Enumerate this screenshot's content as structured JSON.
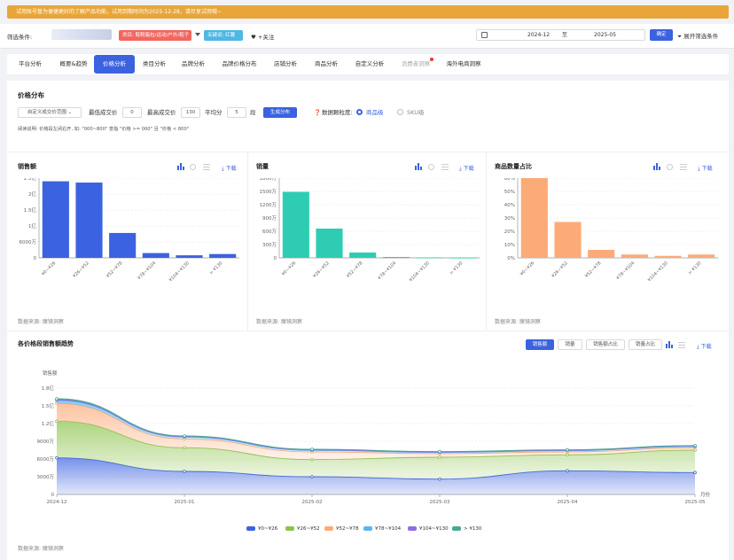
{
  "banner": {
    "text": "试用账号暂为便捷更好的了解产品功能，试用到期时间为2025-12-28，请尽享试用哦~"
  },
  "filter": {
    "label": "筛选条件:",
    "tag_red": "类目: 鞋靴箱包/运动/户外/鞋子",
    "tag_blue": "关键词: 红薯",
    "follow": "+关注",
    "date_start": "2024-12",
    "date_sep": "至",
    "date_end": "2025-05",
    "confirm": "确定",
    "expand": "展开筛选条件"
  },
  "tabs": [
    {
      "label": "平台分析"
    },
    {
      "label": "概要&趋势"
    },
    {
      "label": "价格分析"
    },
    {
      "label": "类目分析"
    },
    {
      "label": "品牌分析"
    },
    {
      "label": "品牌价格分布"
    },
    {
      "label": "店铺分析"
    },
    {
      "label": "商品分析"
    },
    {
      "label": "自定义分析"
    },
    {
      "label": "消费者洞察"
    },
    {
      "label": "海外电商洞察"
    }
  ],
  "price_dist": {
    "title": "价格分布",
    "range_select": "自定义成交价范围",
    "min_label": "最低成交价",
    "min_value": "0",
    "max_label": "最高成交价",
    "max_value": "130",
    "split_label": "平均分",
    "split_value": "5",
    "split_unit": "段",
    "gen_button": "生成分布",
    "granularity_label": "数据颗粒度:",
    "opt_product": "商品级",
    "opt_sku": "SKU级",
    "note": "阅读说明: 价格段左闭右开, 如: \"000~800\" 意指 \"价格 >= 000\" 且 \"价格 < 800\""
  },
  "card1": {
    "title": "销售额",
    "download": "下载",
    "source": "数据来源: 魔镜洞察"
  },
  "card2": {
    "title": "销量",
    "download": "下载",
    "source": "数据来源: 魔镜洞察"
  },
  "card3": {
    "title": "商品数量占比",
    "download": "下载",
    "source": "数据来源: 魔镜洞察"
  },
  "trend": {
    "title": "各价格段销售额趋势",
    "btn_sales": "销售额",
    "btn_volume": "销量",
    "btn_sales_pct": "销售额占比",
    "btn_volume_pct": "销量占比",
    "download": "下载",
    "source": "数据来源: 魔镜洞察"
  },
  "colors": {
    "accent": "#3b62e0",
    "blue": "#3b62e0",
    "teal": "#2ecdb3",
    "orange": "#fcaa78"
  },
  "chart_data": [
    {
      "type": "bar",
      "categories": [
        "¥0~¥26",
        "¥26~¥52",
        "¥52~¥78",
        "¥78~¥104",
        "¥104~¥130",
        "> ¥130"
      ],
      "values": [
        24000,
        23600,
        7800,
        1500,
        800,
        1200
      ],
      "yticks": [
        "0",
        "6000万",
        "1亿",
        "1.5亿",
        "2亿",
        "2.5亿"
      ],
      "ylim": [
        0,
        25000
      ],
      "color": "#3b62e0"
    },
    {
      "type": "bar",
      "categories": [
        "¥0~¥26",
        "¥26~¥52",
        "¥52~¥78",
        "¥78~¥104",
        "¥104~¥130",
        "> ¥130"
      ],
      "values": [
        1490,
        660,
        120,
        20,
        8,
        5
      ],
      "yticks": [
        "0",
        "300万",
        "600万",
        "900万",
        "1200万",
        "1500万",
        "1800万"
      ],
      "ylim": [
        0,
        1800
      ],
      "color": "#2ecdb3"
    },
    {
      "type": "bar",
      "categories": [
        "¥0~¥26",
        "¥26~¥52",
        "¥52~¥78",
        "¥78~¥104",
        "¥104~¥130",
        "> ¥130"
      ],
      "values": [
        60,
        27,
        6,
        2.5,
        1.5,
        2.5
      ],
      "yticks": [
        "0%",
        "10%",
        "20%",
        "30%",
        "40%",
        "50%",
        "60%"
      ],
      "ylim": [
        0,
        60
      ],
      "color": "#fcaa78"
    },
    {
      "type": "area",
      "ylabel": "销售额",
      "xlabel": "月份",
      "x": [
        "2024-12",
        "2025-01",
        "2025-02",
        "2025-03",
        "2025-04",
        "2025-05"
      ],
      "yticks": [
        "0",
        "3000万",
        "6000万",
        "9000万",
        "1.2亿",
        "1.5亿",
        "1.8亿"
      ],
      "ylim": [
        0,
        18000
      ],
      "series": [
        {
          "name": "¥0~¥26",
          "color": "#3b62e0",
          "values": [
            6200,
            3900,
            3000,
            2600,
            4000,
            3700
          ]
        },
        {
          "name": "¥26~¥52",
          "color": "#8bc34a",
          "values": [
            6200,
            4000,
            2900,
            3700,
            2700,
            3800
          ]
        },
        {
          "name": "¥52~¥78",
          "color": "#fcaa78",
          "values": [
            3000,
            1500,
            1300,
            600,
            500,
            400
          ]
        },
        {
          "name": "¥78~¥104",
          "color": "#5bb5f0",
          "values": [
            500,
            300,
            250,
            200,
            200,
            200
          ]
        },
        {
          "name": "¥104~¥130",
          "color": "#8e6fe0",
          "values": [
            150,
            100,
            100,
            80,
            80,
            80
          ]
        },
        {
          "name": "> ¥130",
          "color": "#48a893",
          "values": [
            150,
            100,
            100,
            80,
            80,
            100
          ]
        }
      ]
    }
  ]
}
